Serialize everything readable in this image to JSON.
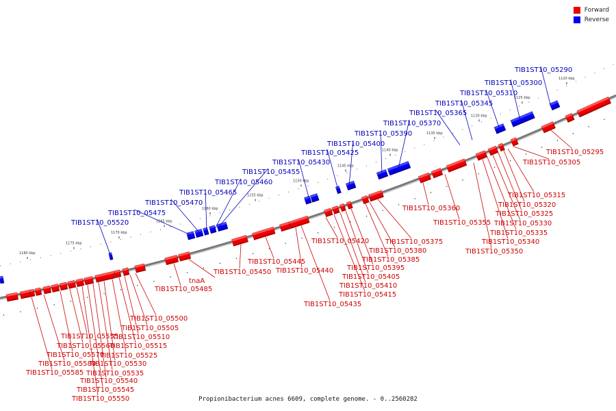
{
  "legend": {
    "items": [
      {
        "label": "Forward",
        "color": "#ee0000"
      },
      {
        "label": "Reverse",
        "color": "#0000ee"
      }
    ]
  },
  "footer": {
    "caption": "Propionibacterium acnes 6609, complete genome. - 0..2560282"
  },
  "colors": {
    "forward": "#ee0000",
    "reverse": "#0000ee",
    "backbone": "#888888",
    "label_forward": "#cc0000",
    "label_reverse": "#0000bb"
  },
  "ruler": {
    "unit": "kbp",
    "ticks": [
      1120,
      1125,
      1130,
      1135,
      1140,
      1145,
      1150,
      1155,
      1160,
      1165,
      1170,
      1175,
      1180
    ]
  },
  "reverse_genes": [
    "TIB1ST10_05290",
    "TIB1ST10_05300",
    "TIB1ST10_05310",
    "TIB1ST10_05345",
    "TIB1ST10_05365",
    "TIB1ST10_05370",
    "TIB1ST10_05390",
    "TIB1ST10_05400",
    "TIB1ST10_05425",
    "TIB1ST10_05430",
    "TIB1ST10_05455",
    "TIB1ST10_05460",
    "TIB1ST10_05465",
    "TIB1ST10_05470",
    "TIB1ST10_05475",
    "TIB1ST10_05520"
  ],
  "forward_genes": [
    "TIB1ST10_05295",
    "TIB1ST10_05305",
    "TIB1ST10_05315",
    "TIB1ST10_05320",
    "TIB1ST10_05325",
    "TIB1ST10_05330",
    "TIB1ST10_05335",
    "TIB1ST10_05340",
    "TIB1ST10_05350",
    "TIB1ST10_05355",
    "TIB1ST10_05360",
    "TIB1ST10_05375",
    "TIB1ST10_05380",
    "TIB1ST10_05385",
    "TIB1ST10_05395",
    "TIB1ST10_05405",
    "TIB1ST10_05410",
    "TIB1ST10_05415",
    "TIB1ST10_05420",
    "TIB1ST10_05435",
    "TIB1ST10_05440",
    "TIB1ST10_05445",
    "TIB1ST10_05450",
    "tnaA",
    "TIB1ST10_05485",
    "TIB1ST10_05500",
    "TIB1ST10_05505",
    "TIB1ST10_05510",
    "TIB1ST10_05515",
    "TIB1ST10_05525",
    "TIB1ST10_05530",
    "TIB1ST10_05535",
    "TIB1ST10_05540",
    "TIB1ST10_05545",
    "TIB1ST10_05550",
    "TIB1ST10_05555",
    "TIB1ST10_05560",
    "TIB1ST10_05570",
    "TIB1ST10_05580",
    "TIB1ST10_05585"
  ]
}
